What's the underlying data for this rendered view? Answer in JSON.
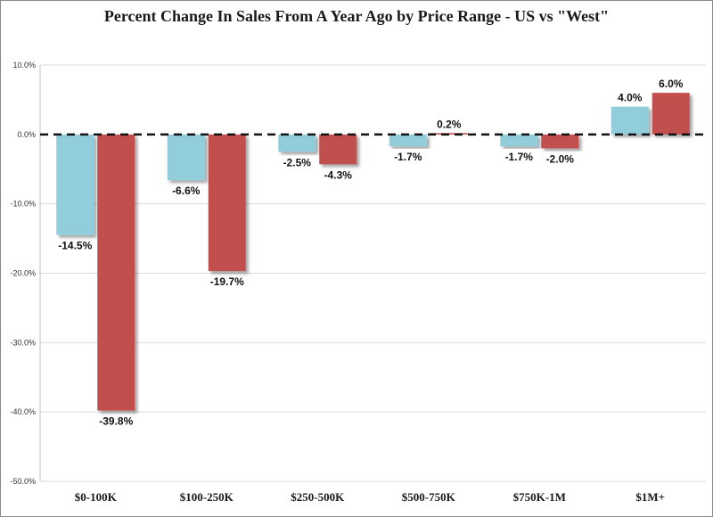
{
  "chart_data": {
    "type": "bar",
    "title": "Percent Change In Sales From A Year Ago by Price Range - US vs \"West\"",
    "categories": [
      "$0-100K",
      "$100-250K",
      "$250-500K",
      "$500-750K",
      "$750K-1M",
      "$1M+"
    ],
    "series": [
      {
        "color": "#92cddc",
        "values": [
          -14.5,
          -6.6,
          -2.5,
          -1.7,
          -1.7,
          4.0
        ],
        "labels": [
          "-14.5%",
          "-6.6%",
          "-2.5%",
          "-1.7%",
          "-1.7%",
          "4.0%"
        ]
      },
      {
        "color": "#c0504d",
        "values": [
          -39.8,
          -19.7,
          -4.3,
          0.2,
          -2.0,
          6.0
        ],
        "labels": [
          "-39.8%",
          "-19.7%",
          "-4.3%",
          "0.2%",
          "-2.0%",
          "6.0%"
        ]
      }
    ],
    "ylim": [
      -50,
      10
    ],
    "yticks": [
      10,
      0,
      -10,
      -20,
      -30,
      -40,
      -50
    ],
    "ytick_labels": [
      "10.0%",
      "0.0%",
      "-10.0%",
      "-20.0%",
      "-30.0%",
      "-40.0%",
      "-50.0%"
    ],
    "grid": true,
    "zero_line": "dashed"
  }
}
